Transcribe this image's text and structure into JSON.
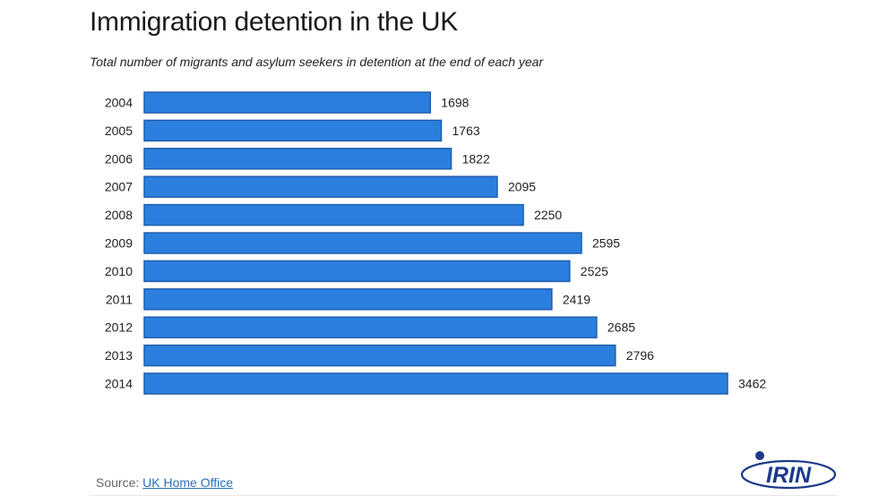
{
  "header": {
    "title": "Immigration detention in the UK",
    "subtitle": "Total number of migrants and asylum seekers in detention at the end of each year"
  },
  "footer": {
    "source_label": "Source:",
    "source_link": "UK Home Office",
    "logo_text": "IRIN"
  },
  "colors": {
    "bar_fill": "#2b7fde",
    "bar_stroke": "#1f5fae",
    "text": "#222222",
    "link": "#2a6fb5",
    "logo": "#1d3a8a"
  },
  "chart_data": {
    "type": "bar",
    "orientation": "horizontal",
    "title": "Immigration detention in the UK",
    "subtitle": "Total number of migrants and asylum seekers in detention at the end of each year",
    "categories": [
      "2004",
      "2005",
      "2006",
      "2007",
      "2008",
      "2009",
      "2010",
      "2011",
      "2012",
      "2013",
      "2014"
    ],
    "values": [
      1698,
      1763,
      1822,
      2095,
      2250,
      2595,
      2525,
      2419,
      2685,
      2796,
      3462
    ],
    "data_labels": true,
    "grid": false,
    "legend": false
  }
}
